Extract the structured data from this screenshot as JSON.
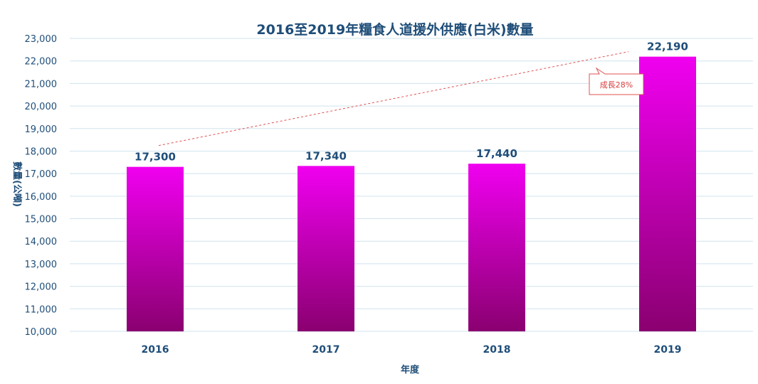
{
  "chart_data": {
    "type": "bar",
    "title": "2016至2019年糧食人道援外供應(白米)數量",
    "xlabel": "年度",
    "ylabel": "數量(公噸)",
    "categories": [
      "2016",
      "2017",
      "2018",
      "2019"
    ],
    "values": [
      17300,
      17340,
      17440,
      22190
    ],
    "value_labels": [
      "17,300",
      "17,340",
      "17,440",
      "22,190"
    ],
    "ylim": [
      10000,
      23000
    ],
    "yticks": [
      10000,
      11000,
      12000,
      13000,
      14000,
      15000,
      16000,
      17000,
      18000,
      19000,
      20000,
      21000,
      22000,
      23000
    ],
    "ytick_labels": [
      "10,000",
      "11,000",
      "12,000",
      "13,000",
      "14,000",
      "15,000",
      "16,000",
      "17,000",
      "18,000",
      "19,000",
      "20,000",
      "21,000",
      "22,000",
      "23,000"
    ],
    "grid": true,
    "legend": "none",
    "trendline": {
      "from": "2016",
      "to": "2019",
      "style": "dashed",
      "color": "#e05050"
    },
    "annotation": {
      "text": "成長28%",
      "color": "#d93c3c"
    },
    "bar_colors": {
      "top": "#f000f0",
      "bottom": "#8a0070"
    }
  }
}
